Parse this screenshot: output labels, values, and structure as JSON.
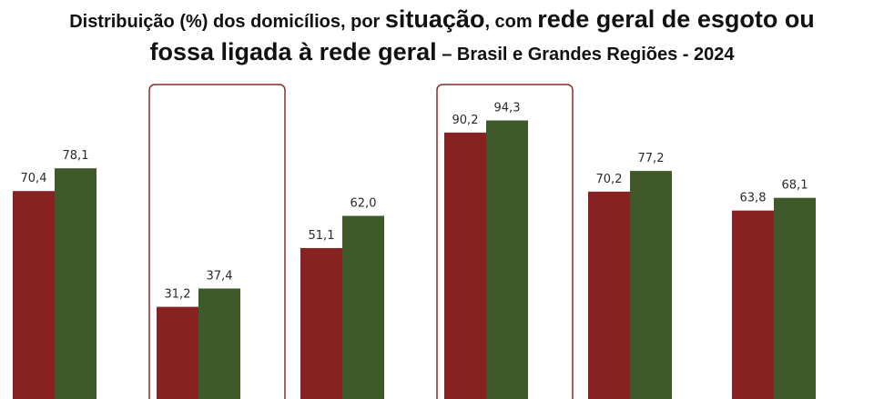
{
  "title": {
    "part1": "Distribuição (%) dos domicílios, por ",
    "part2": "situação",
    "part3": ", com ",
    "part4": "rede geral de esgoto ou",
    "part5": "fossa ligada à rede geral",
    "part6": " – Brasil e Grandes Regiões - 2024"
  },
  "colors": {
    "series1": "#872222",
    "series2": "#40592a",
    "highlight_border": "#8a2b2b"
  },
  "chart_data": {
    "type": "bar",
    "categories": [
      "",
      "",
      "",
      "",
      "",
      ""
    ],
    "series": [
      {
        "values": [
          70.4,
          31.2,
          51.1,
          90.2,
          70.2,
          63.8
        ],
        "labels": [
          "70,4",
          "31,2",
          "51,1",
          "90,2",
          "70,2",
          "63,8"
        ]
      },
      {
        "values": [
          78.1,
          37.4,
          62.0,
          94.3,
          77.2,
          68.1
        ],
        "labels": [
          "78,1",
          "37,4",
          "62,0",
          "94,3",
          "77,2",
          "68,1"
        ]
      }
    ],
    "highlighted_groups": [
      1,
      3
    ],
    "grid": false,
    "legend": "none"
  }
}
